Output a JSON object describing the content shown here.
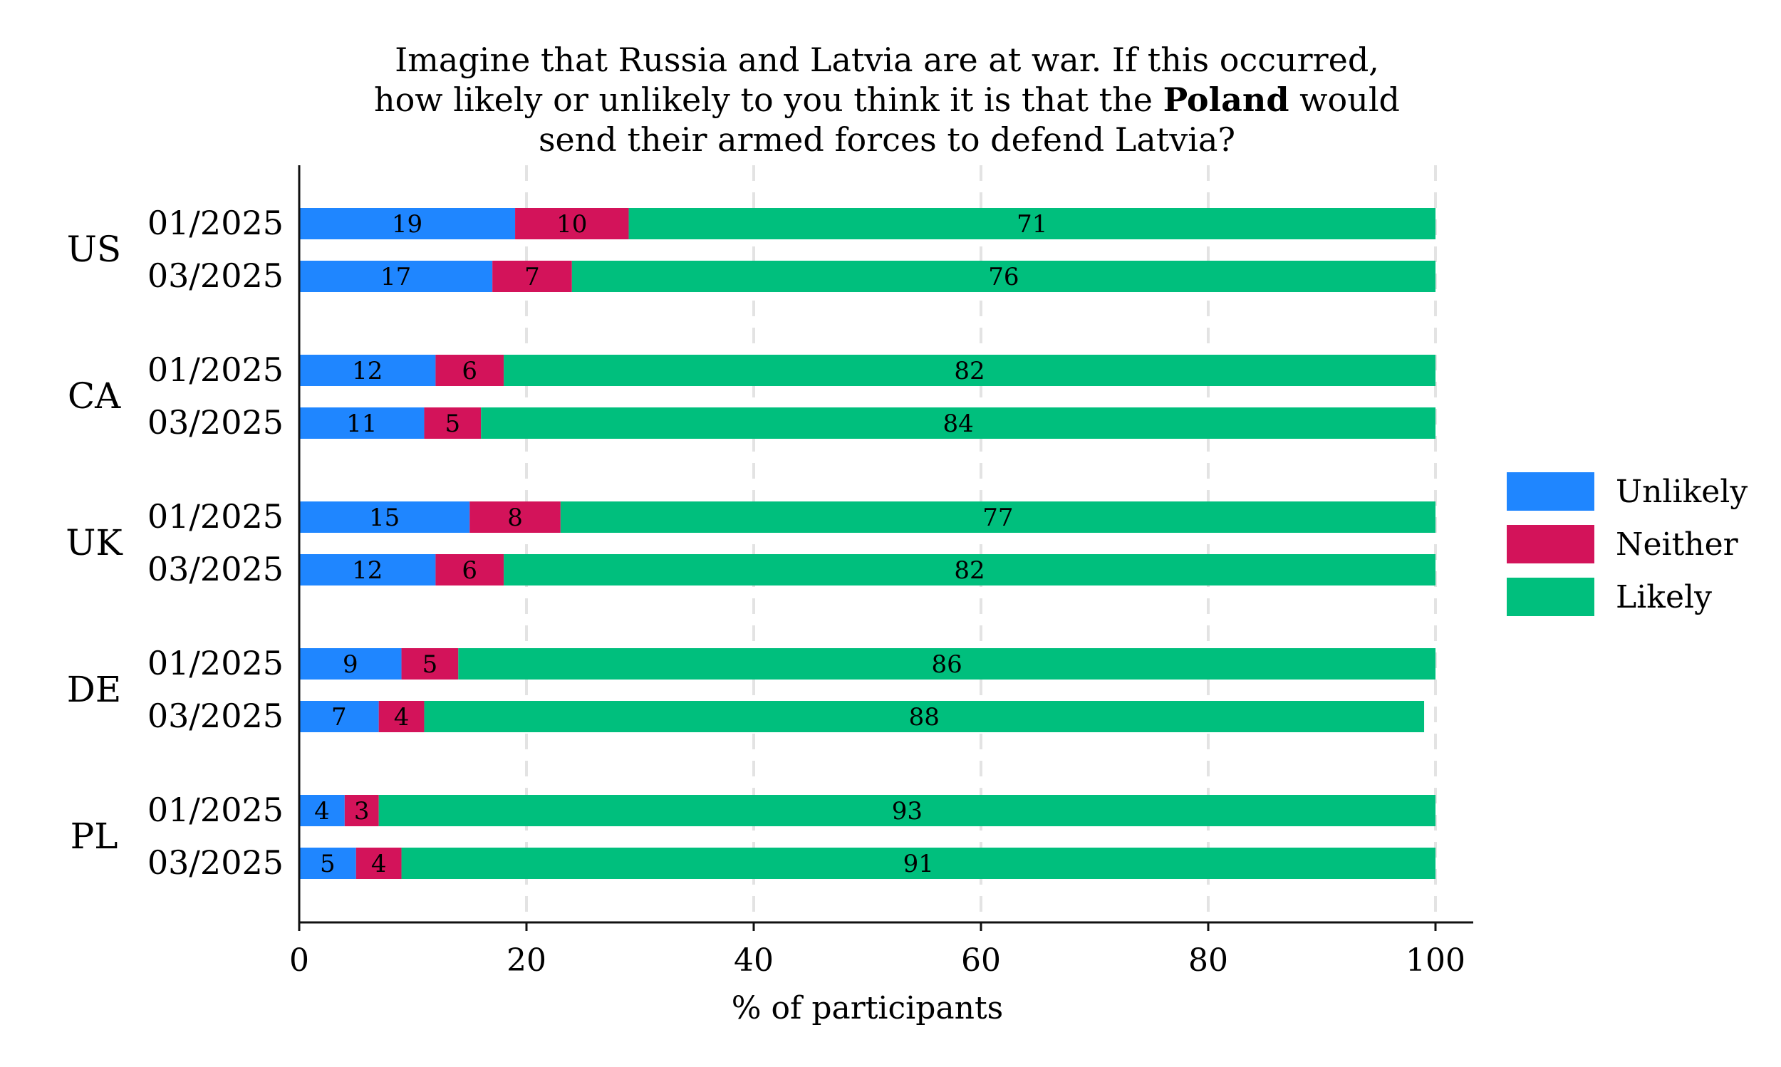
{
  "chart_data": {
    "type": "bar",
    "orientation": "horizontal",
    "stacked": true,
    "title_lines": [
      [
        {
          "text": "Imagine that Russia and Latvia are at war. If this occurred,",
          "bold": false
        }
      ],
      [
        {
          "text": "how likely or unlikely to you think it is that the ",
          "bold": false
        },
        {
          "text": "Poland",
          "bold": true
        },
        {
          "text": " would",
          "bold": false
        }
      ],
      [
        {
          "text": "send their armed forces to defend Latvia?",
          "bold": false
        }
      ]
    ],
    "xlabel": "% of participants",
    "xlim": [
      0,
      100
    ],
    "xticks": [
      "0",
      "20",
      "40",
      "60",
      "80",
      "100"
    ],
    "grid": "vertical dashed",
    "legend_position": "right",
    "series": [
      {
        "name": "Unlikely",
        "color": "#1f86ff"
      },
      {
        "name": "Neither",
        "color": "#d3135a"
      },
      {
        "name": "Likely",
        "color": "#00bf7d"
      }
    ],
    "groups": [
      {
        "label": "US",
        "rows": [
          {
            "label": "01/2025",
            "values": [
              19,
              10,
              71
            ]
          },
          {
            "label": "03/2025",
            "values": [
              17,
              7,
              76
            ]
          }
        ]
      },
      {
        "label": "CA",
        "rows": [
          {
            "label": "01/2025",
            "values": [
              12,
              6,
              82
            ]
          },
          {
            "label": "03/2025",
            "values": [
              11,
              5,
              84
            ]
          }
        ]
      },
      {
        "label": "UK",
        "rows": [
          {
            "label": "01/2025",
            "values": [
              15,
              8,
              77
            ]
          },
          {
            "label": "03/2025",
            "values": [
              12,
              6,
              82
            ]
          }
        ]
      },
      {
        "label": "DE",
        "rows": [
          {
            "label": "01/2025",
            "values": [
              9,
              5,
              86
            ]
          },
          {
            "label": "03/2025",
            "values": [
              7,
              4,
              88
            ]
          }
        ]
      },
      {
        "label": "PL",
        "rows": [
          {
            "label": "01/2025",
            "values": [
              4,
              3,
              93
            ]
          },
          {
            "label": "03/2025",
            "values": [
              5,
              4,
              91
            ]
          }
        ]
      }
    ]
  }
}
